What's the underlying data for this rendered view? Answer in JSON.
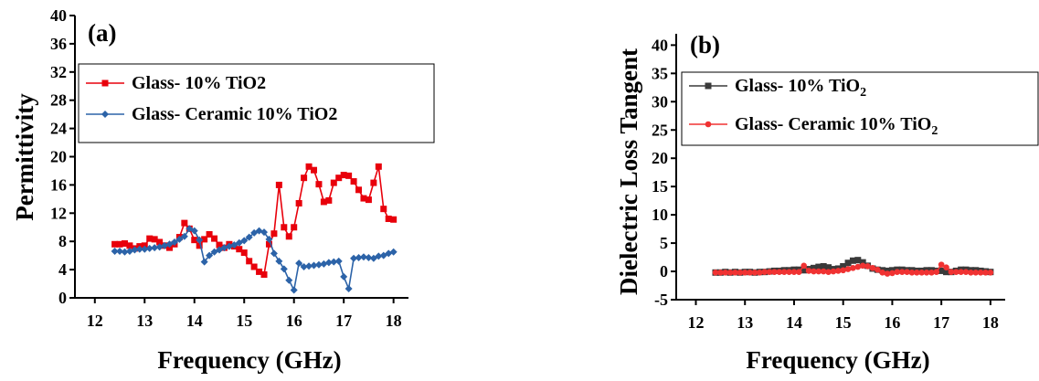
{
  "chart_data": [
    {
      "type": "line",
      "panel_label": "(a)",
      "xlabel": "Frequency (GHz)",
      "ylabel": "Permittivity",
      "xlim": [
        11.6,
        18.3
      ],
      "ylim": [
        0,
        40
      ],
      "xticks": [
        "12",
        "13",
        "14",
        "15",
        "16",
        "17",
        "18"
      ],
      "yticks": [
        "0",
        "4",
        "8",
        "12",
        "16",
        "20",
        "24",
        "28",
        "32",
        "36",
        "40"
      ],
      "legend_position": "upper-left",
      "series": [
        {
          "name": "Glass- 10% TiO2",
          "color": "#e8000b",
          "marker": "square",
          "x": [
            12.4,
            12.5,
            12.6,
            12.7,
            12.8,
            12.9,
            13.0,
            13.1,
            13.2,
            13.3,
            13.4,
            13.5,
            13.6,
            13.7,
            13.8,
            13.9,
            14.0,
            14.1,
            14.2,
            14.3,
            14.4,
            14.5,
            14.6,
            14.7,
            14.8,
            14.9,
            15.0,
            15.1,
            15.2,
            15.3,
            15.4,
            15.5,
            15.6,
            15.7,
            15.8,
            15.9,
            16.0,
            16.1,
            16.2,
            16.3,
            16.4,
            16.5,
            16.6,
            16.7,
            16.8,
            16.9,
            17.0,
            17.1,
            17.2,
            17.3,
            17.4,
            17.5,
            17.6,
            17.7,
            17.8,
            17.9,
            18.0
          ],
          "y": [
            7.6,
            7.6,
            7.7,
            7.4,
            7.0,
            7.3,
            7.4,
            8.4,
            8.3,
            7.9,
            7.4,
            7.1,
            7.6,
            8.6,
            10.6,
            9.8,
            8.2,
            7.4,
            8.3,
            9.0,
            8.4,
            7.5,
            7.1,
            7.6,
            7.3,
            6.9,
            6.4,
            5.2,
            4.4,
            3.7,
            3.3,
            7.6,
            9.1,
            16.0,
            10.0,
            8.7,
            10.0,
            13.4,
            17.0,
            18.6,
            18.1,
            16.1,
            13.6,
            13.8,
            16.3,
            17.0,
            17.4,
            17.3,
            16.5,
            15.3,
            14.1,
            13.9,
            16.3,
            18.6,
            12.6,
            11.2,
            11.1
          ]
        },
        {
          "name": "Glass- Ceramic 10% TiO2",
          "color": "#2c63a8",
          "marker": "diamond",
          "x": [
            12.4,
            12.5,
            12.6,
            12.7,
            12.8,
            12.9,
            13.0,
            13.1,
            13.2,
            13.3,
            13.4,
            13.5,
            13.6,
            13.7,
            13.8,
            13.9,
            14.0,
            14.1,
            14.2,
            14.3,
            14.4,
            14.5,
            14.6,
            14.7,
            14.8,
            14.9,
            15.0,
            15.1,
            15.2,
            15.3,
            15.4,
            15.5,
            15.6,
            15.7,
            15.8,
            15.9,
            16.0,
            16.1,
            16.2,
            16.3,
            16.4,
            16.5,
            16.6,
            16.7,
            16.8,
            16.9,
            17.0,
            17.1,
            17.2,
            17.3,
            17.4,
            17.5,
            17.6,
            17.7,
            17.8,
            17.9,
            18.0
          ],
          "y": [
            6.6,
            6.6,
            6.5,
            6.6,
            6.8,
            6.9,
            6.9,
            7.0,
            7.1,
            7.2,
            7.4,
            7.6,
            7.9,
            8.3,
            8.7,
            9.8,
            9.5,
            8.2,
            5.1,
            6.0,
            6.5,
            6.8,
            7.1,
            7.3,
            7.5,
            7.8,
            8.1,
            8.6,
            9.2,
            9.5,
            9.3,
            8.3,
            6.3,
            5.2,
            4.1,
            2.5,
            1.1,
            4.9,
            4.4,
            4.5,
            4.6,
            4.7,
            4.8,
            5.0,
            5.1,
            5.2,
            3.0,
            1.3,
            5.6,
            5.7,
            5.8,
            5.7,
            5.6,
            5.9,
            6.0,
            6.3,
            6.5
          ]
        }
      ]
    },
    {
      "type": "line",
      "panel_label": "(b)",
      "xlabel": "Frequency (GHz)",
      "ylabel": "Dielectric Loss Tangent",
      "xlim": [
        11.6,
        18.3
      ],
      "ylim": [
        -5,
        42
      ],
      "xticks": [
        "12",
        "13",
        "14",
        "15",
        "16",
        "17",
        "18"
      ],
      "yticks": [
        "-5",
        "0",
        "5",
        "10",
        "15",
        "20",
        "25",
        "30",
        "35",
        "40"
      ],
      "legend_position": "upper-left",
      "series": [
        {
          "name": "Glass- 10% TiO",
          "name_subscript": "2",
          "color": "#3a3a3a",
          "marker": "square",
          "x": [
            12.4,
            12.5,
            12.6,
            12.7,
            12.8,
            12.9,
            13.0,
            13.1,
            13.2,
            13.3,
            13.4,
            13.5,
            13.6,
            13.7,
            13.8,
            13.9,
            14.0,
            14.1,
            14.2,
            14.3,
            14.4,
            14.5,
            14.6,
            14.7,
            14.8,
            14.9,
            15.0,
            15.1,
            15.2,
            15.3,
            15.4,
            15.5,
            15.6,
            15.7,
            15.8,
            15.9,
            16.0,
            16.1,
            16.2,
            16.3,
            16.4,
            16.5,
            16.6,
            16.7,
            16.8,
            16.9,
            17.0,
            17.1,
            17.2,
            17.3,
            17.4,
            17.5,
            17.6,
            17.7,
            17.8,
            17.9,
            18.0
          ],
          "y": [
            -0.2,
            -0.2,
            -0.1,
            -0.2,
            -0.1,
            -0.2,
            -0.1,
            -0.1,
            -0.2,
            -0.1,
            -0.1,
            0.0,
            0.1,
            0.1,
            0.2,
            0.2,
            0.3,
            0.3,
            0.2,
            0.4,
            0.6,
            0.8,
            0.9,
            0.7,
            0.4,
            0.5,
            0.9,
            1.5,
            1.9,
            2.0,
            1.6,
            1.0,
            0.5,
            0.3,
            0.2,
            0.1,
            0.2,
            0.3,
            0.3,
            0.2,
            0.2,
            0.1,
            0.1,
            0.2,
            0.2,
            0.1,
            0.1,
            -0.1,
            -0.1,
            0.1,
            0.3,
            0.3,
            0.2,
            0.2,
            0.1,
            0.0,
            -0.1
          ]
        },
        {
          "name": "Glass- Ceramic 10% TiO",
          "name_subscript": "2",
          "color": "#f03232",
          "marker": "circle",
          "x": [
            12.4,
            12.5,
            12.6,
            12.7,
            12.8,
            12.9,
            13.0,
            13.1,
            13.2,
            13.3,
            13.4,
            13.5,
            13.6,
            13.7,
            13.8,
            13.9,
            14.0,
            14.1,
            14.2,
            14.3,
            14.4,
            14.5,
            14.6,
            14.7,
            14.8,
            14.9,
            15.0,
            15.1,
            15.2,
            15.3,
            15.4,
            15.5,
            15.6,
            15.7,
            15.8,
            15.9,
            16.0,
            16.1,
            16.2,
            16.3,
            16.4,
            16.5,
            16.6,
            16.7,
            16.8,
            16.9,
            17.0,
            17.1,
            17.2,
            17.3,
            17.4,
            17.5,
            17.6,
            17.7,
            17.8,
            17.9,
            18.0
          ],
          "y": [
            -0.2,
            -0.2,
            -0.2,
            -0.2,
            -0.2,
            -0.2,
            -0.2,
            -0.2,
            -0.2,
            -0.2,
            -0.1,
            -0.1,
            -0.1,
            -0.1,
            -0.1,
            -0.1,
            -0.1,
            -0.1,
            1.0,
            0.1,
            0.0,
            0.0,
            0.0,
            -0.1,
            0.0,
            0.1,
            0.2,
            0.4,
            0.6,
            0.8,
            1.0,
            0.9,
            0.6,
            0.3,
            -0.2,
            -0.4,
            -0.3,
            -0.1,
            -0.1,
            -0.1,
            -0.2,
            -0.2,
            -0.2,
            -0.2,
            -0.2,
            -0.1,
            1.2,
            0.7,
            -0.1,
            -0.1,
            -0.1,
            -0.1,
            -0.2,
            -0.2,
            -0.2,
            -0.2,
            -0.2
          ]
        }
      ]
    }
  ]
}
